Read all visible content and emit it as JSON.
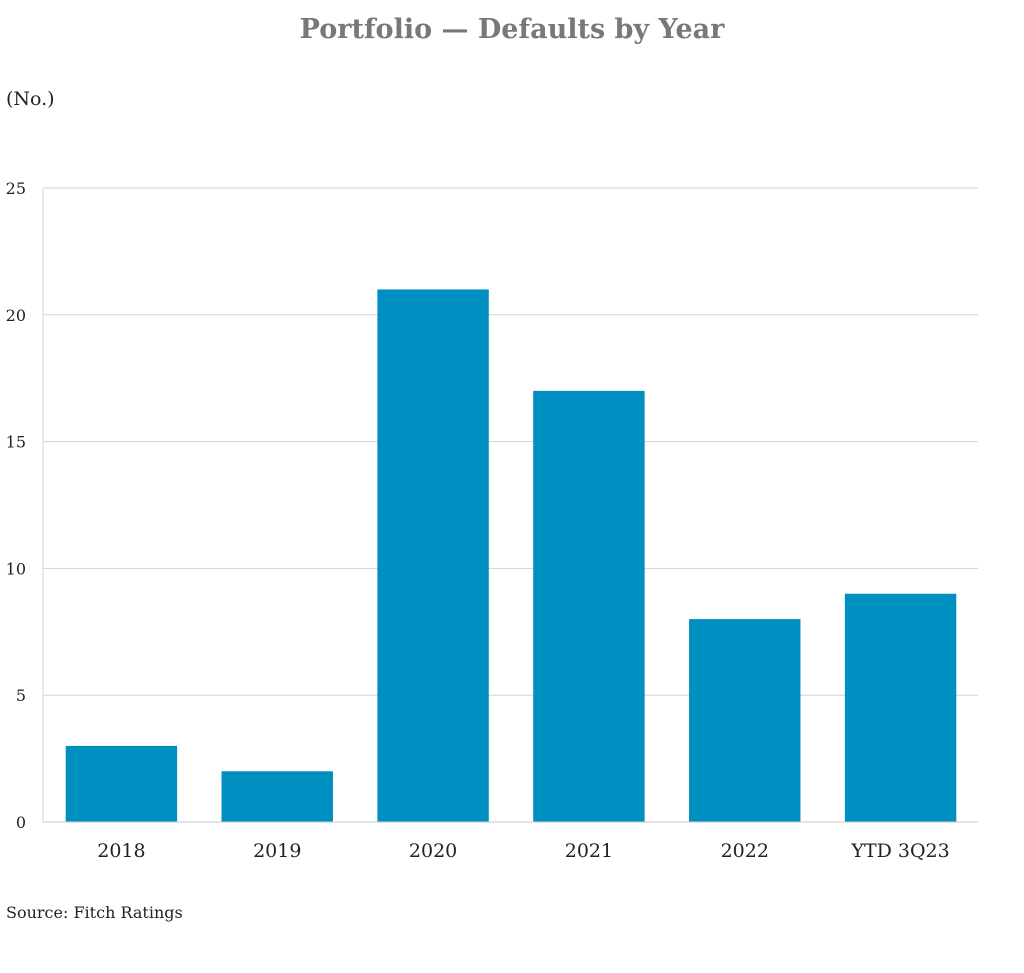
{
  "chart_data": {
    "type": "bar",
    "title": "Portfolio — Defaults by Year",
    "ylabel": "(No.)",
    "xlabel": "",
    "categories": [
      "2018",
      "2019",
      "2020",
      "2021",
      "2022",
      "YTD 3Q23"
    ],
    "values": [
      3,
      2,
      21,
      17,
      8,
      9
    ],
    "ylim": [
      0,
      25
    ],
    "yticks": [
      "0",
      "5",
      "10",
      "15",
      "20",
      "25"
    ],
    "grid": true,
    "bar_color": "#008fc1",
    "grid_color": "#d3d3d3",
    "source": "Source: Fitch Ratings"
  }
}
